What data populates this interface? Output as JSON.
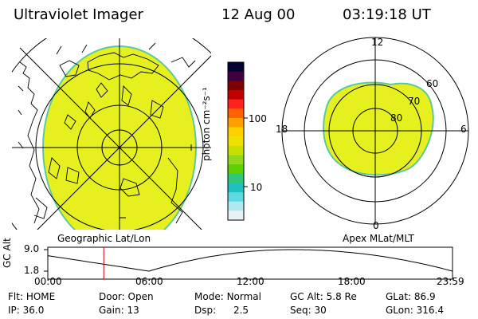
{
  "header": {
    "instrument": "Ultraviolet Imager",
    "date": "12 Aug 00",
    "time": "03:19:18 UT"
  },
  "colorbar": {
    "unit_label": "photon cm⁻²s⁻¹",
    "tick_100": "100",
    "tick_10": "10",
    "colors": [
      "#000033",
      "#400040",
      "#800000",
      "#c00000",
      "#ff2020",
      "#ff6000",
      "#ffa000",
      "#ffd000",
      "#f0e000",
      "#c8e000",
      "#90d820",
      "#60d000",
      "#30c878",
      "#20c0c0",
      "#60d8e0",
      "#b0e8f0",
      "#e8f0f4"
    ]
  },
  "left_panel": {
    "label": "Geographic Lat/Lon",
    "fill_color": "#e6f01e",
    "edge_color": "#5cc8a0"
  },
  "right_panel": {
    "label": "Apex MLat/MLT",
    "mlt_12": "12",
    "mlt_18": "18",
    "mlt_6": "6",
    "mlt_0": "0",
    "lat_60": "60",
    "lat_70": "70",
    "lat_80": "80",
    "fill_color": "#e6f01e",
    "edge_color": "#5cc8a0"
  },
  "altitude_plot": {
    "ylabel": "GC Alt",
    "y_top": "9.0",
    "y_bottom": "1.8",
    "x_ticks": [
      "00:00",
      "06:00",
      "12:00",
      "18:00",
      "23:59"
    ],
    "marker_hour": 3.32,
    "marker_color": "#cc0000"
  },
  "status": {
    "flt_label": "Flt:",
    "flt_value": "HOME",
    "ip_label": "IP:",
    "ip_value": "36.0",
    "door_label": "Door:",
    "door_value": "Open",
    "gain_label": "Gain:",
    "gain_value": "13",
    "mode_label": "Mode:",
    "mode_value": "Normal",
    "dsp_label": "Dsp:",
    "dsp_value": "2.5",
    "gcalt_label": "GC Alt:",
    "gcalt_value": "5.8 Re",
    "seq_label": "Seq:",
    "seq_value": "30",
    "glat_label": "GLat:",
    "glat_value": "86.9",
    "glon_label": "GLon:",
    "glon_value": "316.4"
  }
}
